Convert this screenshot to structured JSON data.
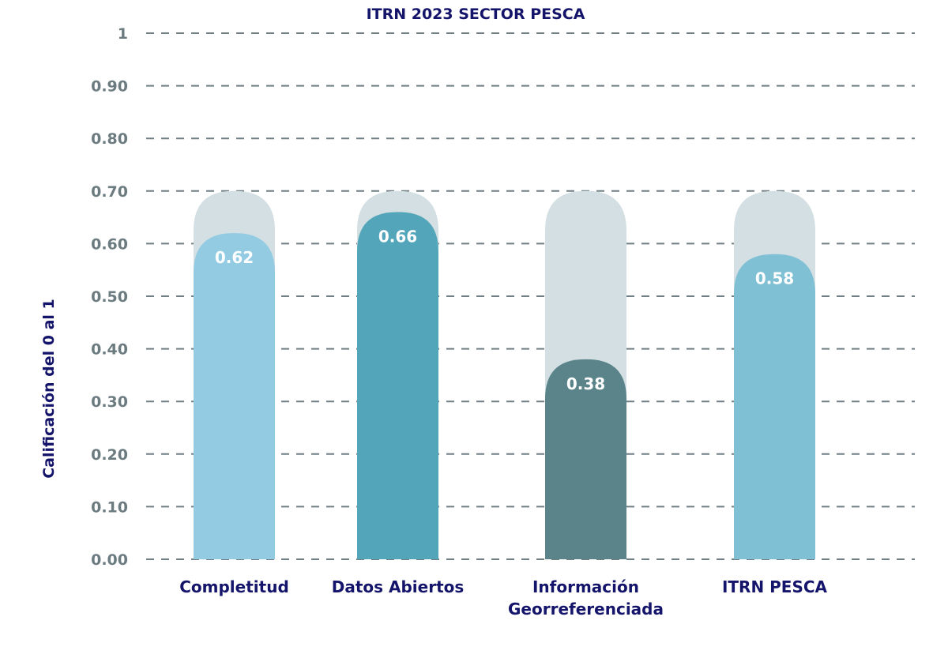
{
  "chart_data": {
    "type": "bar",
    "title": "ITRN 2023 SECTOR PESCA",
    "xlabel": "",
    "ylabel": "Calificación del 0 al 1",
    "ylim": [
      0,
      1
    ],
    "yticks": [
      "0.00",
      "0.10",
      "0.20",
      "0.30",
      "0.40",
      "0.50",
      "0.60",
      "0.70",
      "0.80",
      "0.90",
      "1"
    ],
    "ytick_values": [
      0,
      0.1,
      0.2,
      0.3,
      0.4,
      0.5,
      0.6,
      0.7,
      0.8,
      0.9,
      1
    ],
    "grid": true,
    "categories": [
      [
        "Completitud"
      ],
      [
        "Datos Abiertos"
      ],
      [
        "Información",
        "Georreferenciada"
      ],
      [
        "ITRN PESCA"
      ]
    ],
    "values": [
      0.62,
      0.66,
      0.38,
      0.58
    ],
    "data_labels": [
      "0.62",
      "0.66",
      "0.38",
      "0.58"
    ],
    "background_value": 0.7,
    "colors": [
      "#93cbe3",
      "#53a6b9",
      "#5a8489",
      "#7fc0d4"
    ],
    "background_color": "#d3dfe3"
  }
}
